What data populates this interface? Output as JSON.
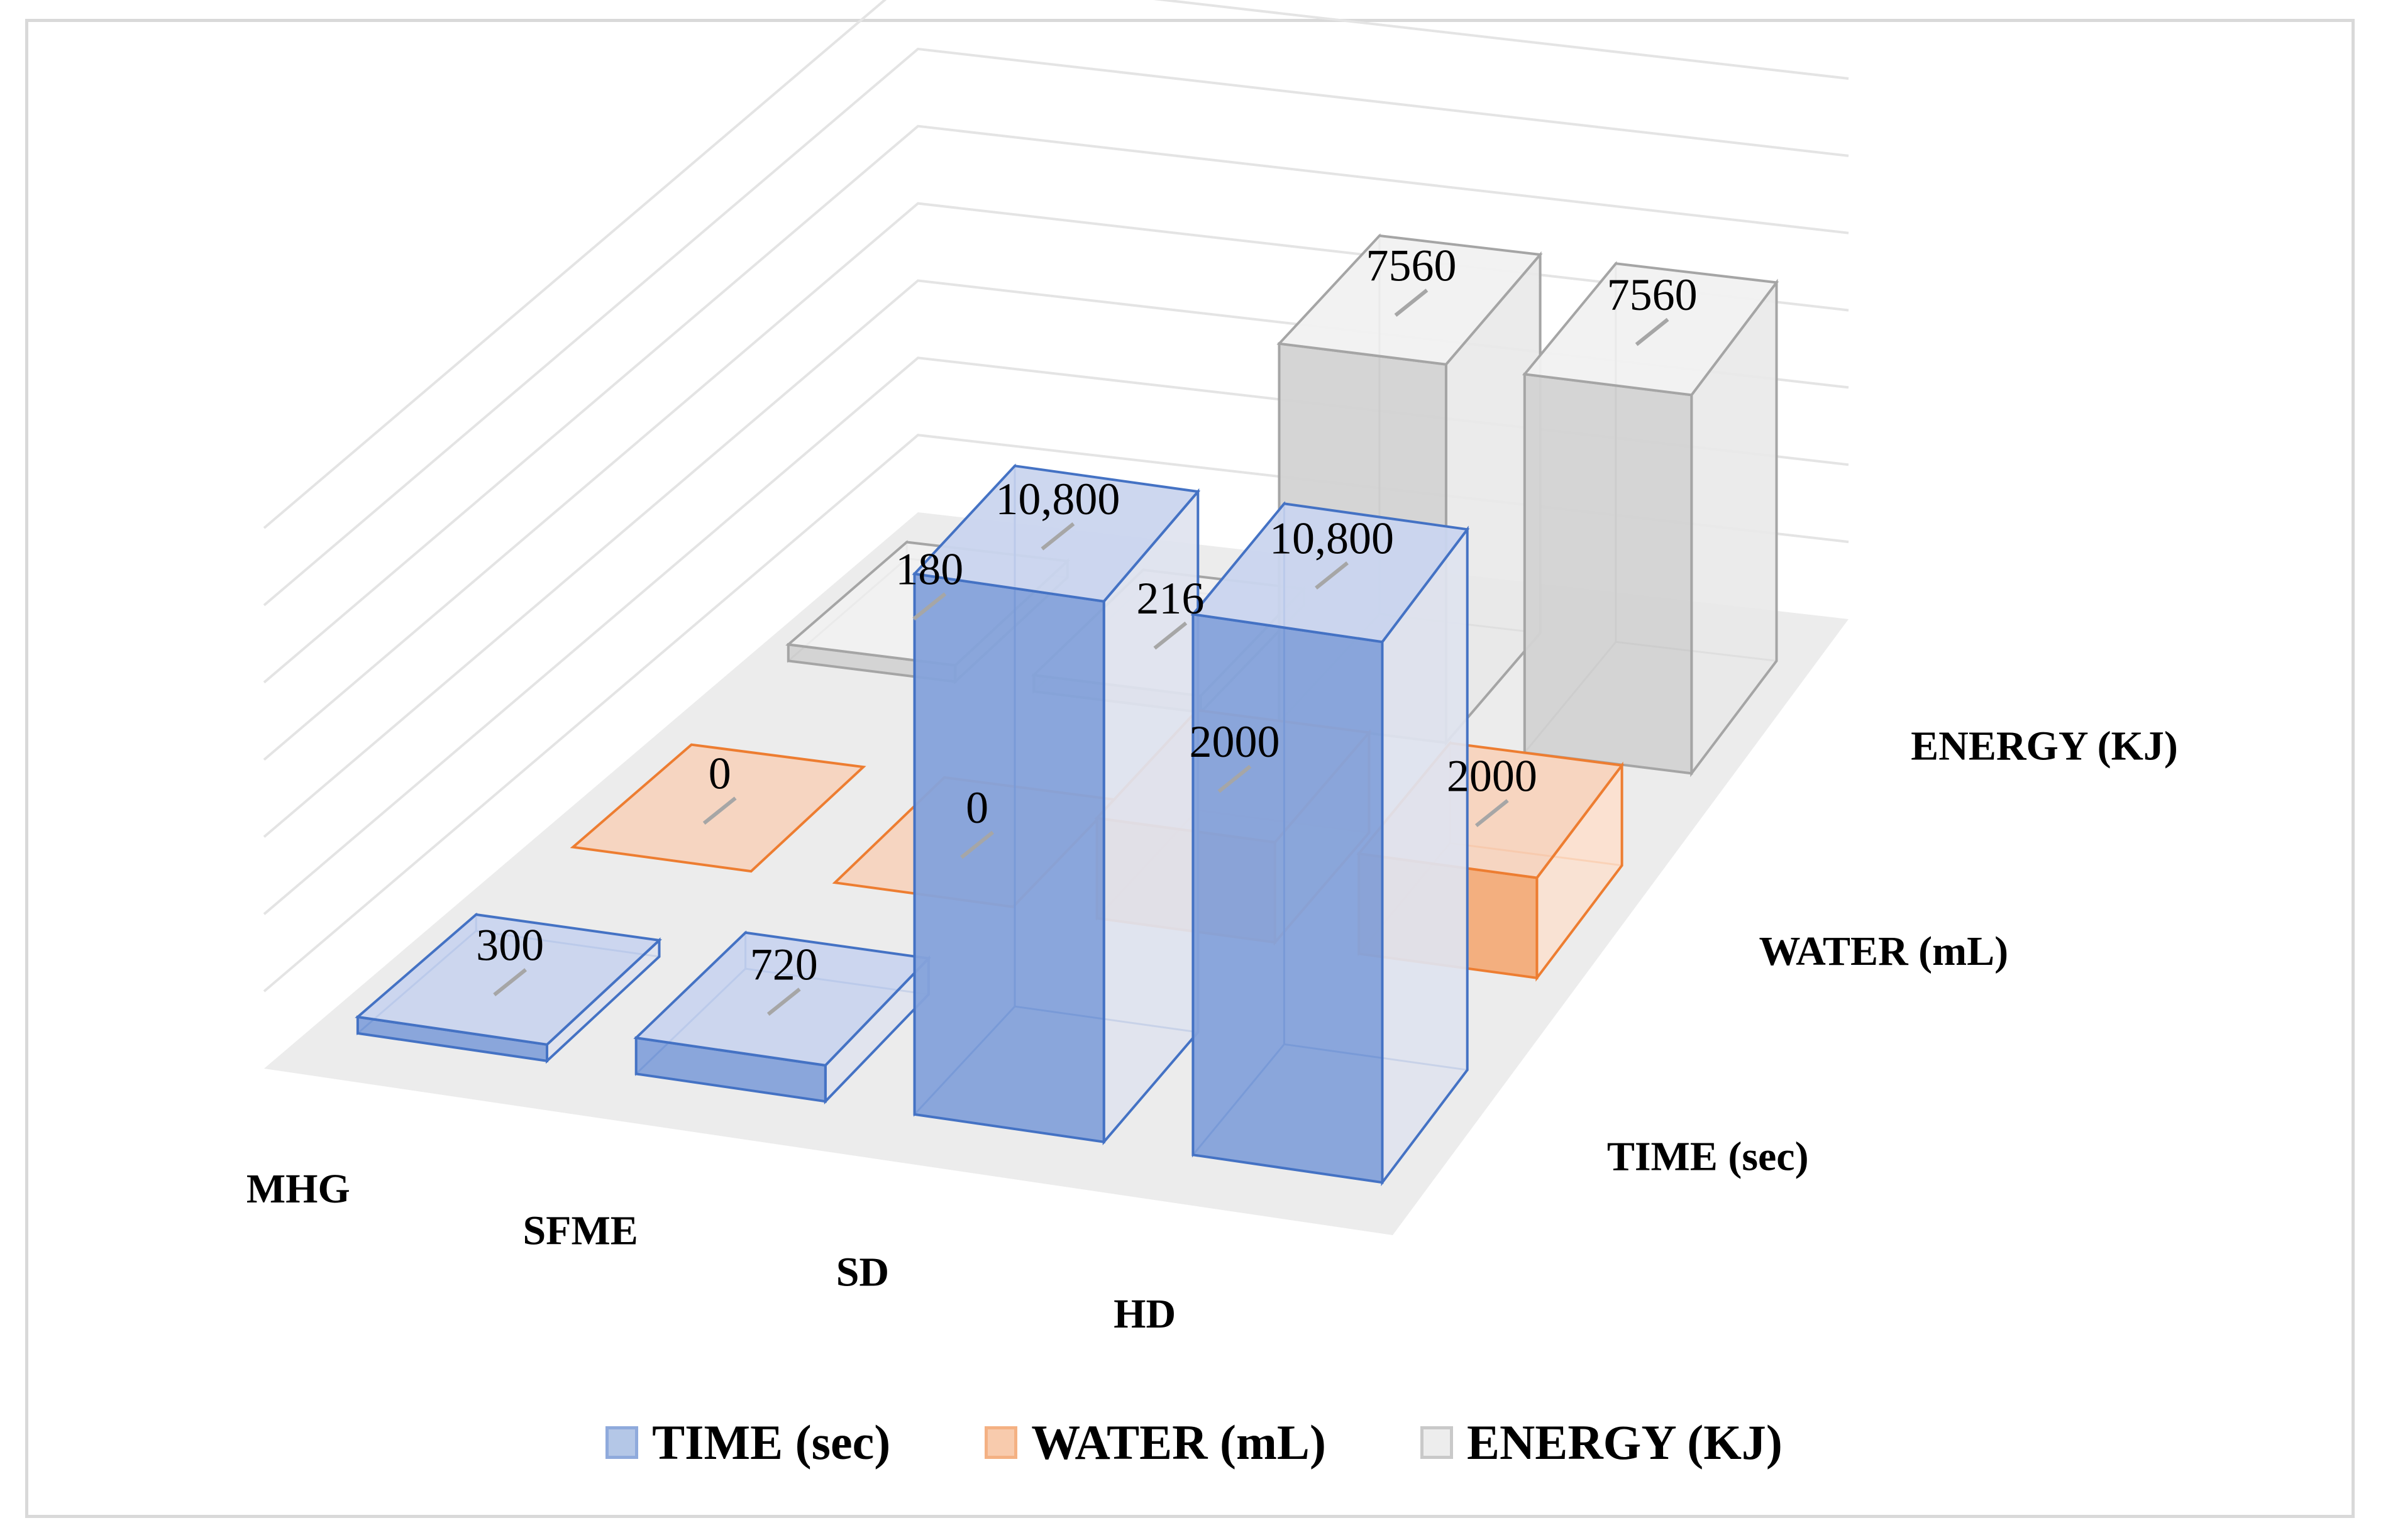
{
  "chart_data": {
    "type": "bar-3d",
    "categories": [
      "MHG",
      "SFME",
      "SD",
      "HD"
    ],
    "series": [
      {
        "name": "TIME (sec)",
        "values": [
          300,
          720,
          10800,
          10800
        ],
        "labels": [
          "300",
          "720",
          "10,800",
          "10,800"
        ],
        "color": "#4472C4"
      },
      {
        "name": "WATER (mL)",
        "values": [
          0,
          0,
          2000,
          2000
        ],
        "labels": [
          "0",
          "0",
          "2000",
          "2000"
        ],
        "color": "#ED7D31"
      },
      {
        "name": "ENERGY (KJ)",
        "values": [
          180,
          216,
          7560,
          7560
        ],
        "labels": [
          "180",
          "216",
          "7560",
          "7560"
        ],
        "color": "#A5A5A5"
      }
    ],
    "title": "",
    "legend": "bottom-center",
    "grid": true
  }
}
